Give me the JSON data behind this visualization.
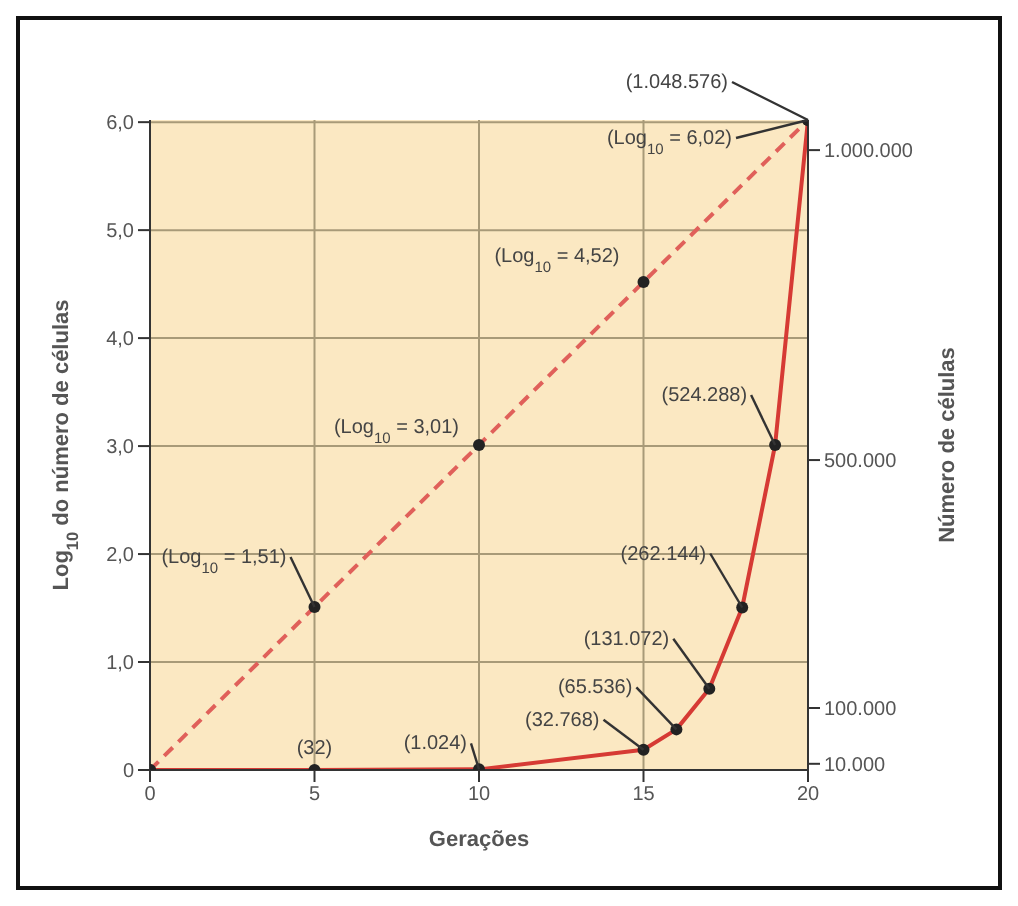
{
  "chart_data": {
    "type": "line",
    "xlabel": "Gerações",
    "ylabel": "Log$_{10}$ do número de células",
    "y2label": "Número de células",
    "xlim": [
      0,
      20
    ],
    "xticks": [
      0,
      5,
      10,
      15,
      20
    ],
    "ylim": [
      0,
      6.02
    ],
    "yticks": [
      0,
      {
        "value": 1,
        "label": "1,0"
      },
      {
        "value": 2,
        "label": "2,0"
      },
      {
        "value": 3,
        "label": "3,0"
      },
      {
        "value": 4,
        "label": "4,0"
      },
      {
        "value": 5,
        "label": "5,0"
      },
      {
        "value": 6,
        "label": "6,0"
      }
    ],
    "y2lim": [
      0,
      1048576
    ],
    "y2ticks": [
      {
        "value": 10000,
        "label": "10.000"
      },
      {
        "value": 100000,
        "label": "100.000"
      },
      {
        "value": 500000,
        "label": "500.000"
      },
      {
        "value": 1000000,
        "label": "1.000.000"
      }
    ],
    "grid": true,
    "marker": "circle",
    "series": [
      {
        "color": "#e0605a",
        "line_style": "dashed",
        "x": [
          0,
          5,
          10,
          15,
          20
        ],
        "values": [
          0,
          1.51,
          3.01,
          4.52,
          6.02
        ],
        "value_labels": [
          null,
          "(Log$_{10}$ = 1,51)",
          "(Log$_{10}$ = 3,01)",
          "(Log$_{10}$ = 4,52)",
          "(Log$_{10}$ = 6,02)"
        ]
      },
      {
        "color": "#d63a34",
        "line_style": "solid",
        "axis": "y2",
        "x": [
          0,
          5,
          10,
          15,
          16,
          17,
          18,
          19,
          20
        ],
        "values": [
          0,
          32,
          1024,
          32768,
          65536,
          131072,
          262144,
          524288,
          1048576
        ],
        "value_labels": [
          null,
          "(32)",
          "(1.024)",
          "(32.768)",
          "(65.536)",
          "(131.072)",
          "(262.144)",
          "(524.288)",
          "(1.048.576)"
        ]
      }
    ]
  }
}
